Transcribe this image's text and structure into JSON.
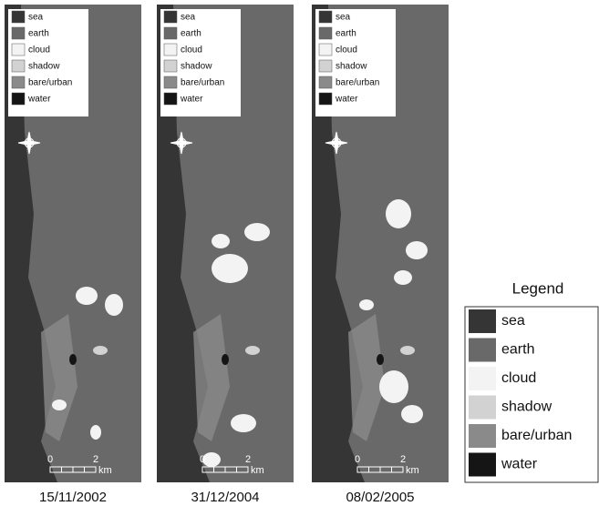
{
  "panels": [
    {
      "legend": [
        "sea",
        "earth",
        "cloud",
        "shadow",
        "bare/urban",
        "water"
      ],
      "scale": {
        "start": "0",
        "end": "2",
        "unit": "km"
      },
      "date": "15/11/2002"
    },
    {
      "legend": [
        "sea",
        "earth",
        "cloud",
        "shadow",
        "bare/urban",
        "water"
      ],
      "scale": {
        "start": "0",
        "end": "2",
        "unit": "km"
      },
      "date": "31/12/2004"
    },
    {
      "legend": [
        "sea",
        "earth",
        "cloud",
        "shadow",
        "bare/urban",
        "water"
      ],
      "scale": {
        "start": "0",
        "end": "2",
        "unit": "km"
      },
      "date": "08/02/2005"
    }
  ],
  "legend": {
    "title": "Legend",
    "items": [
      {
        "label": "sea",
        "color": "#353535"
      },
      {
        "label": "earth",
        "color": "#696969"
      },
      {
        "label": "cloud",
        "color": "#f3f3f3"
      },
      {
        "label": "shadow",
        "color": "#d2d2d2"
      },
      {
        "label": "bare/urban",
        "color": "#8a8a8a"
      },
      {
        "label": "water",
        "color": "#151515"
      }
    ]
  }
}
